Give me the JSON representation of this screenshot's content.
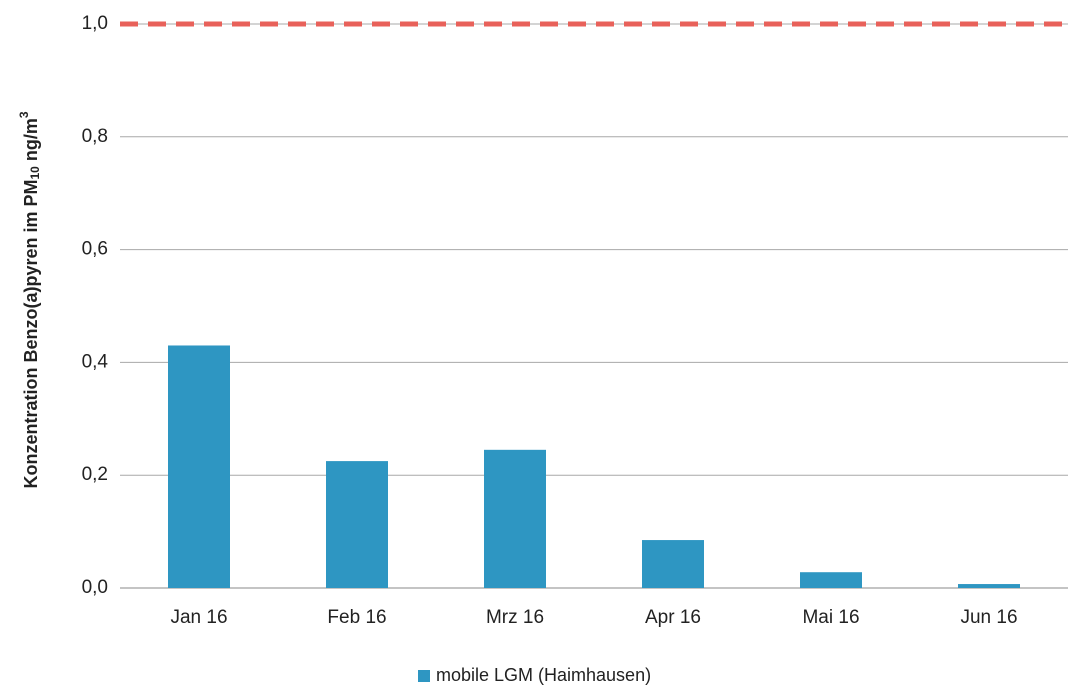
{
  "chart_data": {
    "type": "bar",
    "y_label": [
      "Konzentration Benzo(a)pyren im PM",
      "10",
      " ng/m",
      "3"
    ],
    "categories": [
      "Jan 16",
      "Feb 16",
      "Mrz 16",
      "Apr 16",
      "Mai 16",
      "Jun 16"
    ],
    "series": [
      {
        "name": "mobile LGM (Haimhausen)",
        "color": "#2e96c2",
        "values": [
          0.43,
          0.225,
          0.245,
          0.085,
          0.028,
          0.007
        ]
      }
    ],
    "ylim": [
      0,
      1.0
    ],
    "yticks": [
      {
        "value": 0,
        "label": "0,0"
      },
      {
        "value": 0.2,
        "label": "0,2"
      },
      {
        "value": 0.4,
        "label": "0,4"
      },
      {
        "value": 0.6,
        "label": "0,6"
      },
      {
        "value": 0.8,
        "label": "0,8"
      },
      {
        "value": 1.0,
        "label": "1,0"
      }
    ],
    "grid": true,
    "reference_line": {
      "value": 1.0,
      "color": "#e8615a"
    },
    "legend": "bottom"
  }
}
